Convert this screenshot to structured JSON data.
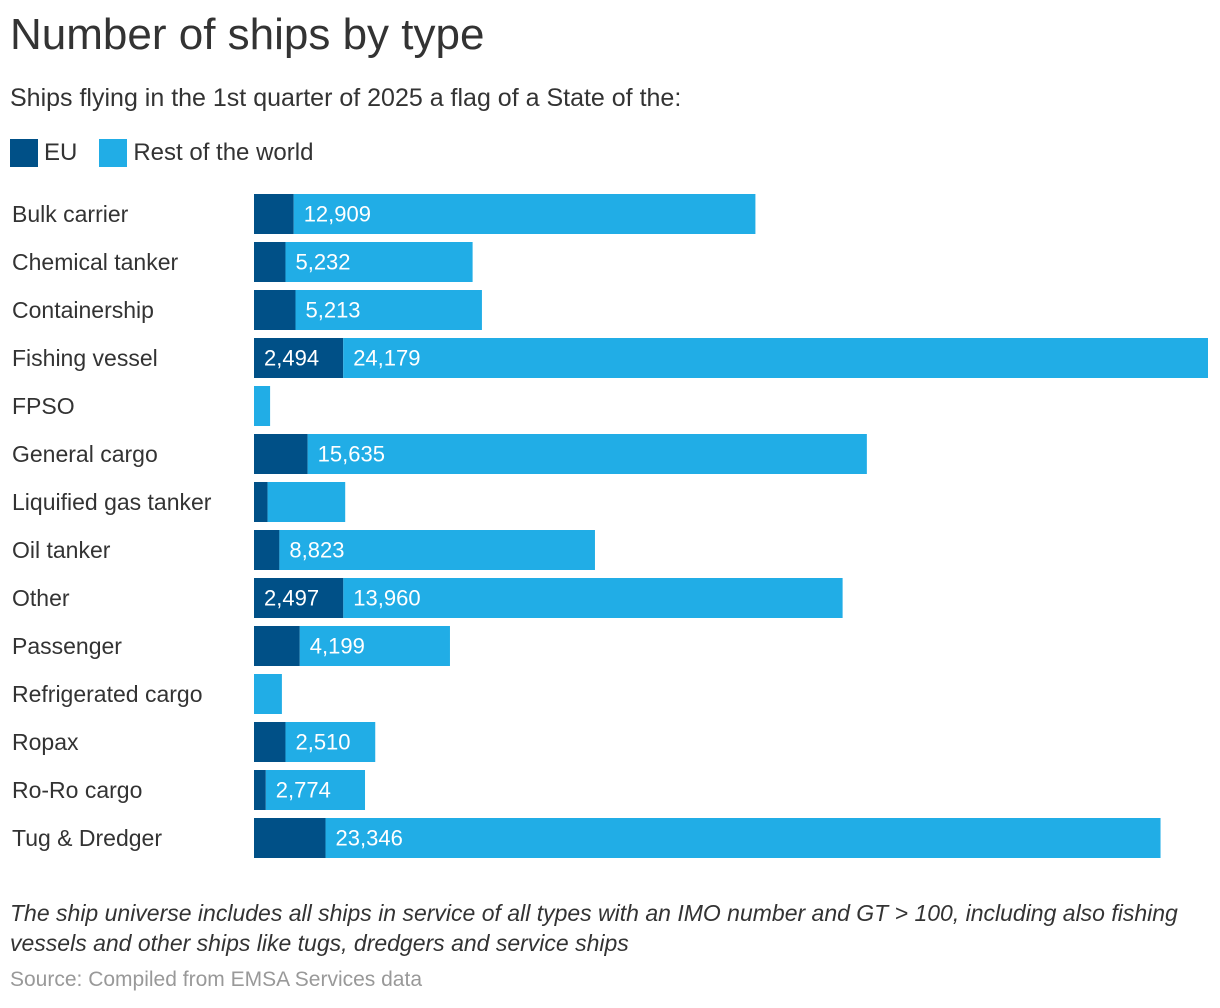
{
  "header": {
    "title": "Number of ships by type",
    "subtitle": "Ships flying in the 1st quarter of 2025 a flag of a State of the:"
  },
  "legend": {
    "items": [
      {
        "label": "EU",
        "color": "#005087"
      },
      {
        "label": "Rest of the world",
        "color": "#21ade6"
      }
    ]
  },
  "chart_data": {
    "type": "bar",
    "orientation": "horizontal",
    "stacked": true,
    "title": "Number of ships by type",
    "subtitle": "Ships flying in the 1st quarter of 2025 a flag of a State of the:",
    "xlabel": "",
    "ylabel": "",
    "xlim": [
      0,
      26673
    ],
    "grid": false,
    "legend_position": "top-left",
    "categories": [
      "Bulk carrier",
      "Chemical tanker",
      "Containership",
      "Fishing vessel",
      "FPSO",
      "General cargo",
      "Liquified gas tanker",
      "Oil tanker",
      "Other",
      "Passenger",
      "Refrigerated cargo",
      "Ropax",
      "Ro-Ro cargo",
      "Tug & Dredger"
    ],
    "series": [
      {
        "name": "EU",
        "color": "#005087",
        "values": [
          1110,
          880,
          1160,
          2494,
          0,
          1500,
          380,
          710,
          2497,
          1280,
          0,
          880,
          330,
          2000
        ],
        "labels": [
          "",
          "",
          "",
          "2,494",
          "",
          "",
          "",
          "",
          "2,497",
          "",
          "",
          "",
          "",
          ""
        ]
      },
      {
        "name": "Rest of the world",
        "color": "#21ade6",
        "values": [
          12909,
          5232,
          5213,
          24179,
          450,
          15635,
          2170,
          8823,
          13960,
          4199,
          780,
          2510,
          2774,
          23346
        ],
        "labels": [
          "12,909",
          "5,232",
          "5,213",
          "24,179",
          "",
          "15,635",
          "",
          "8,823",
          "13,960",
          "4,199",
          "",
          "2,510",
          "2,774",
          "23,346"
        ]
      }
    ]
  },
  "footer": {
    "note": "The ship universe includes all ships in service of all types with an IMO number and GT > 100, including also fishing vessels and other ships like tugs, dredgers and service ships",
    "source": "Source: Compiled from EMSA Services data"
  }
}
